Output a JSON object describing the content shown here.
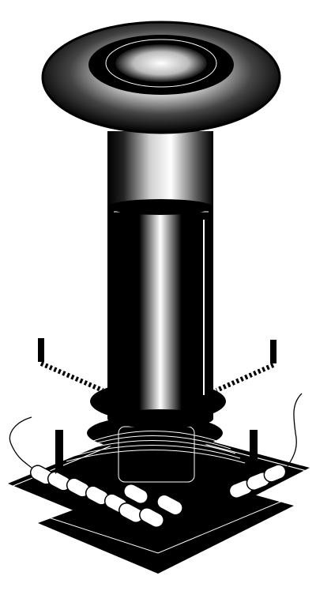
{
  "illustration": {
    "subject": "tesla-coil",
    "style": "black-and-white engraving",
    "colors": {
      "ink": "#000000",
      "paper": "#ffffff"
    }
  }
}
